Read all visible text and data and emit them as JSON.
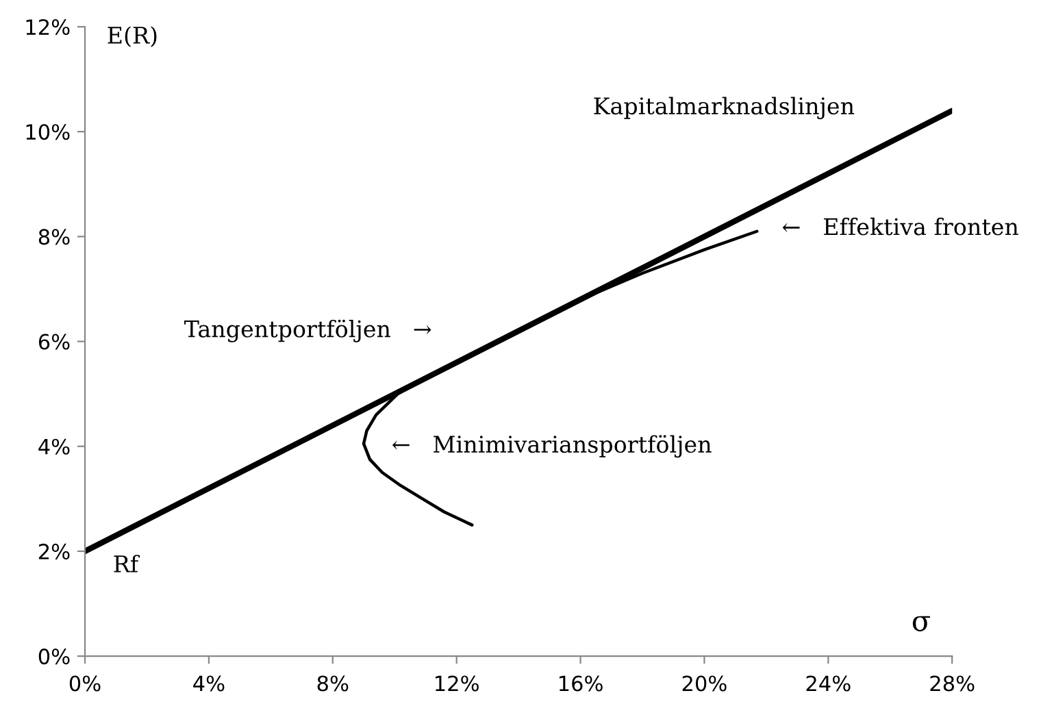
{
  "chart_data": {
    "type": "line",
    "xlabel": "σ",
    "ylabel": "E(R)",
    "series": [
      {
        "color": "#000000",
        "x": [
          0,
          28
        ],
        "values": [
          2,
          10.4
        ]
      },
      {
        "color": "#000000",
        "x": [
          12.5,
          11.6,
          10.9,
          10.2,
          9.6,
          9.2,
          9.0,
          9.1,
          9.4,
          10.1,
          11.0,
          12.5,
          14.0,
          15.8,
          18.0,
          20.0,
          21.7
        ],
        "values": [
          2.5,
          2.75,
          3.0,
          3.25,
          3.5,
          3.75,
          4.05,
          4.3,
          4.6,
          5.0,
          5.3,
          5.75,
          6.2,
          6.75,
          7.3,
          7.75,
          8.1
        ]
      }
    ],
    "annotations": [
      "Kapitalmarknadslinjen",
      "←   Effektiva fronten",
      "Tangentportföljen   →",
      "←   Minimivariansportföljen",
      "Rf"
    ],
    "xlim": [
      0,
      28
    ],
    "ylim": [
      0,
      12
    ],
    "xticks": [
      {
        "value": 0,
        "label": "0%"
      },
      {
        "value": 4,
        "label": "4%"
      },
      {
        "value": 8,
        "label": "8%"
      },
      {
        "value": 12,
        "label": "12%"
      },
      {
        "value": 16,
        "label": "16%"
      },
      {
        "value": 20,
        "label": "20%"
      },
      {
        "value": 24,
        "label": "24%"
      },
      {
        "value": 28,
        "label": "28%"
      }
    ],
    "yticks": [
      {
        "value": 0,
        "label": "0%"
      },
      {
        "value": 2,
        "label": "2%"
      },
      {
        "value": 4,
        "label": "4%"
      },
      {
        "value": 6,
        "label": "6%"
      },
      {
        "value": 8,
        "label": "8%"
      },
      {
        "value": 10,
        "label": "10%"
      },
      {
        "value": 12,
        "label": "12%"
      }
    ],
    "marker": "none",
    "line_style": "solid"
  }
}
